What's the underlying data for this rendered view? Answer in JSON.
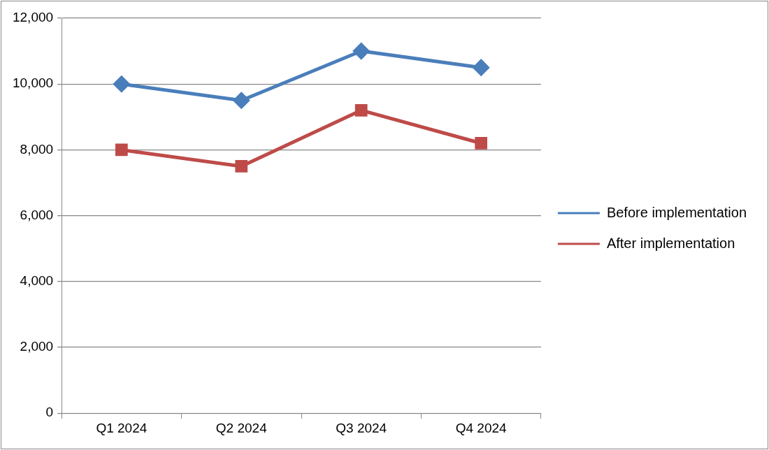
{
  "chart_data": {
    "type": "line",
    "categories": [
      "Q1 2024",
      "Q2 2024",
      "Q3 2024",
      "Q4 2024"
    ],
    "series": [
      {
        "name": "Before implementation",
        "color": "#4a7ebb",
        "marker": "diamond",
        "values": [
          10000,
          9500,
          11000,
          10500
        ]
      },
      {
        "name": "After implementation",
        "color": "#be4b48",
        "marker": "square",
        "values": [
          8000,
          7500,
          9200,
          8200
        ]
      }
    ],
    "ylim": [
      0,
      12000
    ],
    "yticks": [
      0,
      {
        "value": 2000,
        "label": "2,000"
      },
      {
        "value": 4000,
        "label": "4,000"
      },
      {
        "value": 6000,
        "label": "6,000"
      },
      {
        "value": 8000,
        "label": "8,000"
      },
      {
        "value": 10000,
        "label": "10,000"
      },
      {
        "value": 12000,
        "label": "12,000"
      }
    ],
    "grid": "y",
    "legend": "right",
    "line_style": "solid"
  }
}
